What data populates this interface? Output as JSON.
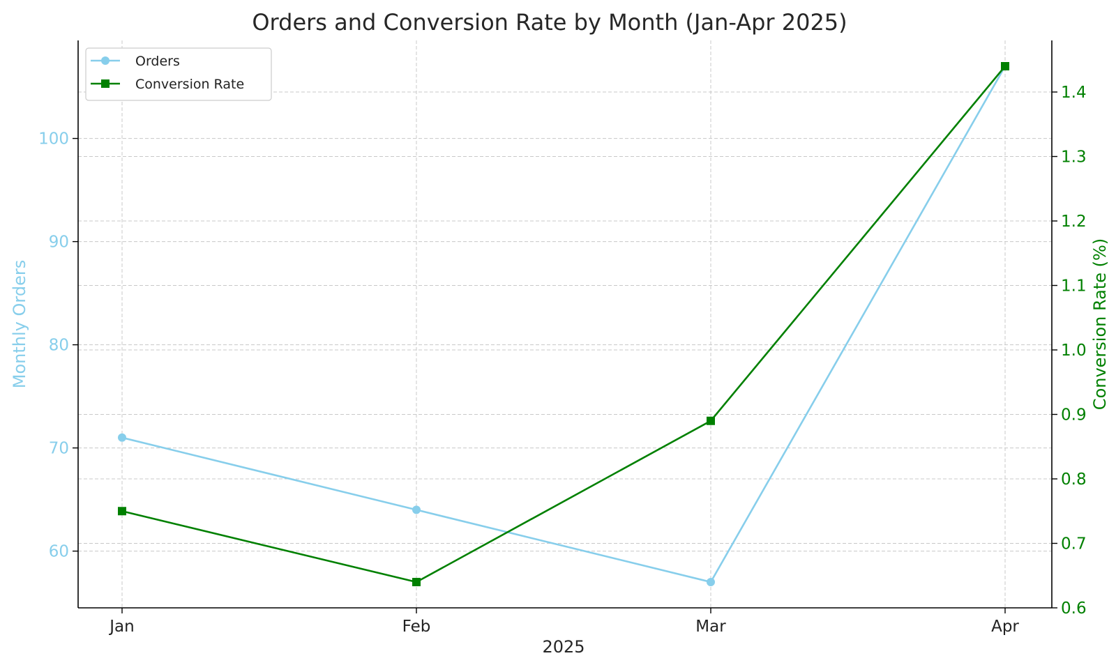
{
  "colors": {
    "orders": "#87ceeb",
    "conversion": "#008000",
    "text": "#262626"
  },
  "chart_data": {
    "type": "line",
    "title": "Orders and Conversion Rate by Month (Jan-Apr 2025)",
    "xlabel": "2025",
    "categories": [
      "Jan",
      "Feb",
      "Mar",
      "Apr"
    ],
    "y_left": {
      "label": "Monthly Orders",
      "range": [
        54.5,
        109.5
      ],
      "ticks": [
        60,
        70,
        80,
        90,
        100
      ]
    },
    "y_right": {
      "label": "Conversion Rate (%)",
      "range": [
        0.6,
        1.48
      ],
      "ticks": [
        "0.6",
        "0.7",
        "0.8",
        "0.9",
        "1.0",
        "1.1",
        "1.2",
        "1.3",
        "1.4"
      ]
    },
    "series": [
      {
        "name": "Orders",
        "axis": "left",
        "marker": "circle",
        "values": [
          71,
          64,
          57,
          107
        ]
      },
      {
        "name": "Conversion Rate",
        "axis": "right",
        "marker": "square",
        "values": [
          0.75,
          0.64,
          0.89,
          1.44
        ]
      }
    ],
    "grid": true,
    "legend": "top-left"
  }
}
